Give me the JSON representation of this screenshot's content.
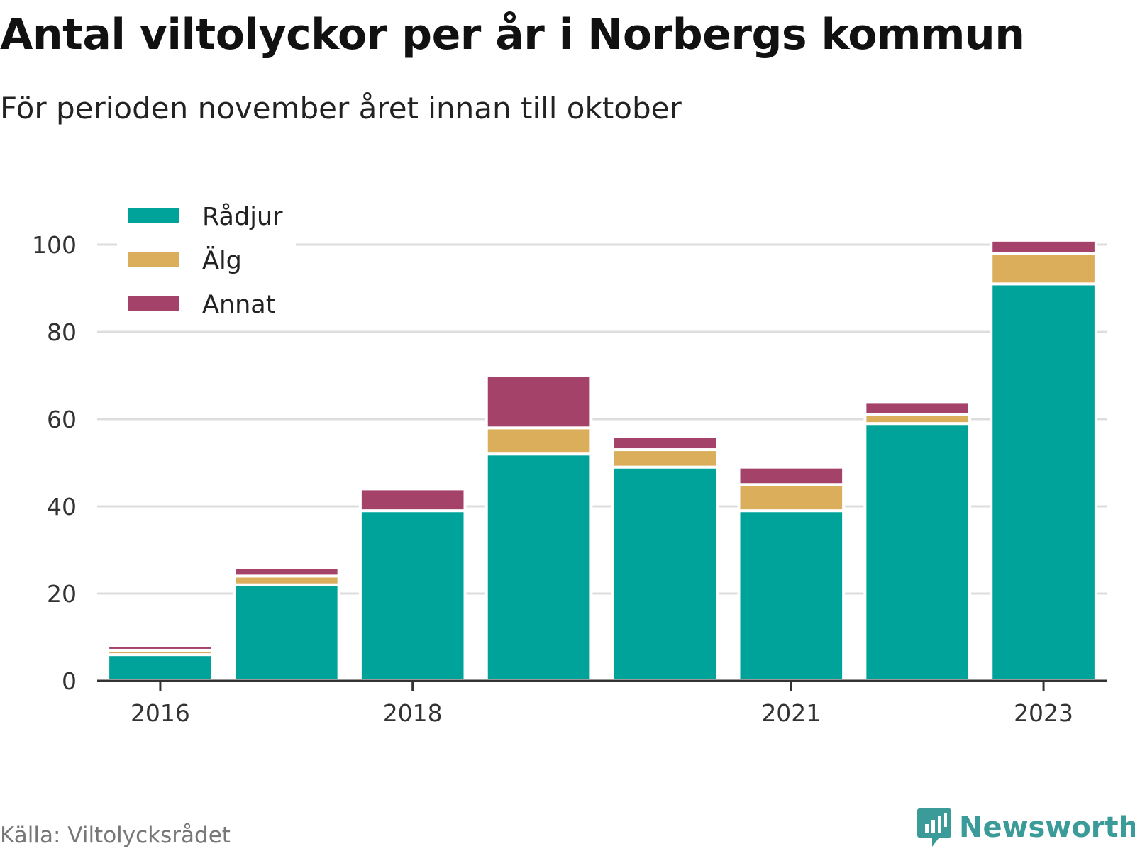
{
  "title": "Antal viltolyckor per år i Norbergs kommun",
  "subtitle": "För perioden november året innan till oktober",
  "source": "Källa: Viltolycksrådet",
  "brand": {
    "name": "Newsworthy",
    "icon": "newsworthy-logo-icon",
    "color": "#3b9b98"
  },
  "chart_data": {
    "type": "bar",
    "stacked": true,
    "categories": [
      "2016",
      "2017",
      "2018",
      "2019",
      "2020",
      "2021",
      "2022",
      "2023"
    ],
    "x_tick_labels": [
      "2016",
      "",
      "2018",
      "",
      "",
      "2021",
      "",
      "2023"
    ],
    "series": [
      {
        "name": "Rådjur",
        "color": "#00a39a",
        "values": [
          6,
          22,
          39,
          52,
          49,
          39,
          59,
          91
        ]
      },
      {
        "name": "Älg",
        "color": "#dbae5c",
        "values": [
          1,
          2,
          0,
          6,
          4,
          6,
          2,
          7
        ]
      },
      {
        "name": "Annat",
        "color": "#a54269",
        "values": [
          1,
          2,
          5,
          12,
          3,
          4,
          3,
          3
        ]
      }
    ],
    "ylim": [
      0,
      100
    ],
    "yticks": [
      "0",
      "20",
      "40",
      "60",
      "80",
      "100"
    ],
    "xlabel": "",
    "ylabel": "",
    "grid": true,
    "legend_position": "top-left"
  }
}
